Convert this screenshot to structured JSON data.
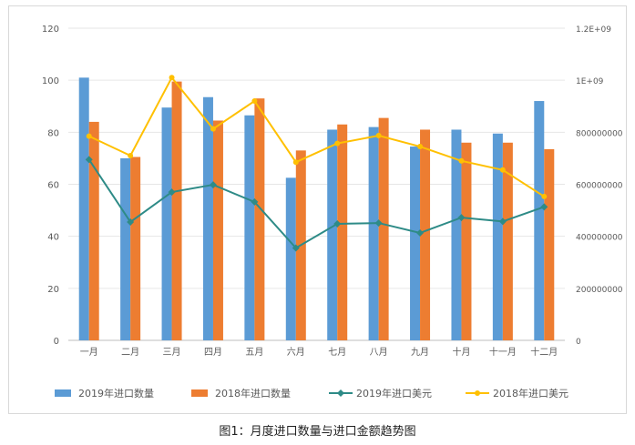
{
  "chart_data": {
    "type": "bar",
    "title": "",
    "categories": [
      "一月",
      "二月",
      "三月",
      "四月",
      "五月",
      "六月",
      "七月",
      "八月",
      "九月",
      "十月",
      "十一月",
      "十二月"
    ],
    "ylim_left": [
      0,
      120
    ],
    "ylim_right": [
      0,
      1200000000
    ],
    "yticks_left": [
      "0",
      "20",
      "40",
      "60",
      "80",
      "100",
      "120"
    ],
    "yticks_right": [
      "0",
      "200000000",
      "400000000",
      "600000000",
      "800000000",
      "1E+09",
      "1.2E+09"
    ],
    "grid": true,
    "legend_position": "bottom",
    "series": [
      {
        "name": "2019年进口数量",
        "kind": "bar",
        "axis": "left",
        "color": "#5b9bd5",
        "values": [
          101,
          70,
          89.5,
          93.5,
          86.5,
          62.5,
          81,
          82,
          74.5,
          81,
          79.5,
          92
        ]
      },
      {
        "name": "2018年进口数量",
        "kind": "bar",
        "axis": "left",
        "color": "#ed7d31",
        "values": [
          84,
          70.5,
          99.5,
          84.5,
          93,
          73,
          83,
          85.5,
          81,
          76,
          76,
          73.5
        ]
      },
      {
        "name": "2019年进口美元",
        "kind": "line",
        "axis": "right",
        "color": "#2e8b87",
        "marker": "diamond",
        "values": [
          695000000,
          455000000,
          570000000,
          598000000,
          532000000,
          355000000,
          448000000,
          451000000,
          413000000,
          472000000,
          457000000,
          513000000
        ]
      },
      {
        "name": "2018年进口美元",
        "kind": "line",
        "axis": "right",
        "color": "#ffc000",
        "marker": "circle",
        "values": [
          785000000,
          710000000,
          1010000000,
          813000000,
          920000000,
          685000000,
          757000000,
          787000000,
          745000000,
          690000000,
          655000000,
          553000000
        ]
      }
    ]
  },
  "caption": "图1：月度进口数量与进口金额趋势图"
}
